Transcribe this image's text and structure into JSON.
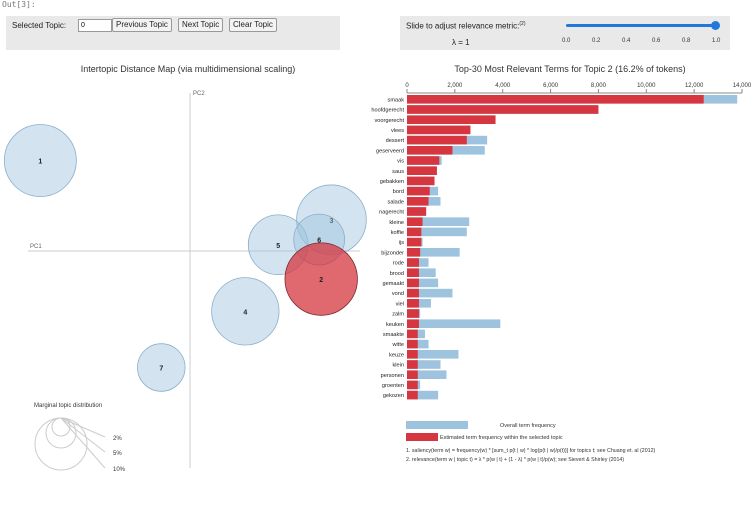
{
  "notebook": {
    "out_label": "Out[3]:"
  },
  "controls": {
    "selected_topic_label": "Selected Topic:",
    "selected_topic_value": "0",
    "prev_button": "Previous Topic",
    "next_button": "Next Topic",
    "clear_button": "Clear Topic"
  },
  "slider": {
    "label": "Slide to adjust relevance metric:",
    "footnote_mark": "(2)",
    "lambda_text": "λ = 1",
    "value": 1.0,
    "ticks": [
      "0.0",
      "0.2",
      "0.4",
      "0.6",
      "0.8",
      "1.0"
    ],
    "color": "#2277dd"
  },
  "chart_data": [
    {
      "type": "scatter",
      "title": "Intertopic Distance Map (via multidimensional scaling)",
      "xlabel": "PC1",
      "ylabel": "PC2",
      "selected_topic": 2,
      "topics": [
        {
          "id": "1",
          "x": -0.73,
          "y": 0.87,
          "size": 16
        },
        {
          "id": "2",
          "x": 0.64,
          "y": -0.27,
          "size": 16.2
        },
        {
          "id": "3",
          "x": 0.69,
          "y": 0.3,
          "size": 15
        },
        {
          "id": "4",
          "x": 0.27,
          "y": -0.58,
          "size": 14
        },
        {
          "id": "5",
          "x": 0.43,
          "y": 0.06,
          "size": 11
        },
        {
          "id": "6",
          "x": 0.63,
          "y": 0.11,
          "size": 8
        },
        {
          "id": "7",
          "x": -0.14,
          "y": -1.12,
          "size": 7
        }
      ],
      "legend": {
        "title": "Marginal topic distribution",
        "labels": [
          "2%",
          "5%",
          "10%"
        ]
      },
      "colors": {
        "default": "#9ec3de",
        "selected": "#d6363f"
      }
    },
    {
      "type": "bar",
      "orientation": "horizontal",
      "title": "Top-30 Most Relevant Terms for Topic 2 (16.2% of tokens)",
      "xlim": [
        0,
        14000
      ],
      "ticks": [
        "0",
        "2,000",
        "4,000",
        "6,000",
        "8,000",
        "10,000",
        "12,000",
        "14,000"
      ],
      "tick_values": [
        0,
        2000,
        4000,
        6000,
        8000,
        10000,
        12000,
        14000
      ],
      "categories": [
        "smaak",
        "hoofdgerecht",
        "voorgerecht",
        "vlees",
        "dessert",
        "geserveerd",
        "vis",
        "saus",
        "gebakken",
        "bord",
        "salade",
        "nagerecht",
        "kleine",
        "koffie",
        "ijs",
        "bijzonder",
        "rode",
        "brood",
        "gemaakt",
        "vond",
        "viel",
        "zalm",
        "keuken",
        "smaakte",
        "witte",
        "keuze",
        "klein",
        "personen",
        "groenten",
        "gekozen"
      ],
      "series": [
        {
          "name": "Overall term frequency",
          "color": "#9ec3de",
          "values": [
            13800,
            8000,
            3700,
            2650,
            3350,
            3250,
            1450,
            1250,
            1150,
            1300,
            1400,
            800,
            2600,
            2500,
            650,
            2200,
            900,
            1200,
            1300,
            1900,
            1000,
            550,
            3900,
            750,
            900,
            2150,
            1400,
            1650,
            550,
            1300
          ]
        },
        {
          "name": "Estimated term frequency within the selected topic",
          "color": "#d6363f",
          "values": [
            12400,
            8000,
            3700,
            2650,
            2500,
            1900,
            1350,
            1250,
            1150,
            950,
            900,
            800,
            650,
            600,
            600,
            550,
            500,
            500,
            500,
            500,
            500,
            500,
            500,
            450,
            450,
            450,
            450,
            450,
            450,
            450
          ]
        }
      ],
      "footnotes": [
        "1. saliency(term w) = frequency(w) * [sum_t p(t | w) * log(p(t | w)/p(t))] for topics t; see Chuang et. al (2012)",
        "2. relevance(term w | topic t) = λ * p(w | t) + (1 - λ) * p(w | t)/p(w); see Sievert & Shirley (2014)"
      ]
    }
  ]
}
